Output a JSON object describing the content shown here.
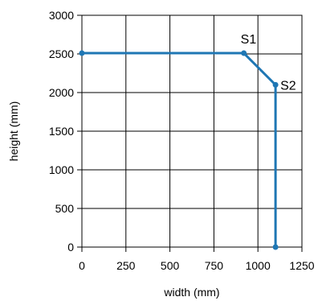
{
  "chart_data": {
    "type": "line",
    "xlabel": "width (mm)",
    "ylabel": "height (mm)",
    "xlim": [
      0,
      1250
    ],
    "ylim": [
      0,
      3000
    ],
    "x_ticks": [
      "0",
      "250",
      "500",
      "750",
      "1000",
      "1250"
    ],
    "y_ticks": [
      "0",
      "500",
      "1000",
      "1500",
      "2000",
      "2500",
      "3000"
    ],
    "grid": true,
    "series": [
      {
        "color": "#1f77b4",
        "points": [
          {
            "x": 0,
            "y": 2510
          },
          {
            "x": 920,
            "y": 2510
          },
          {
            "x": 1100,
            "y": 2100
          },
          {
            "x": 1100,
            "y": 0
          }
        ]
      }
    ],
    "annotations": [
      {
        "text": "S1",
        "x": 920,
        "y": 2510
      },
      {
        "text": "S2",
        "x": 1100,
        "y": 2100
      }
    ]
  }
}
